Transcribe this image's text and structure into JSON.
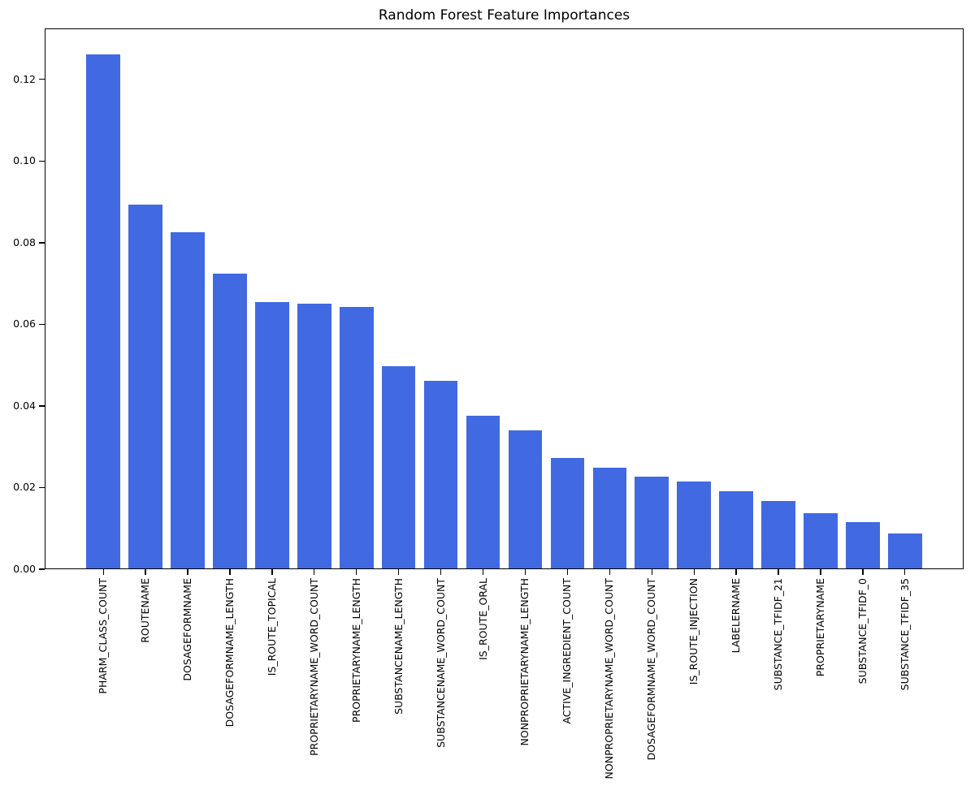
{
  "chart_data": {
    "type": "bar",
    "title": "Random Forest Feature Importances",
    "categories": [
      "PHARM_CLASS_COUNT",
      "ROUTENAME",
      "DOSAGEFORMNAME",
      "DOSAGEFORMNAME_LENGTH",
      "IS_ROUTE_TOPICAL",
      "PROPRIETARYNAME_WORD_COUNT",
      "PROPRIETARYNAME_LENGTH",
      "SUBSTANCENAME_LENGTH",
      "SUBSTANCENAME_WORD_COUNT",
      "IS_ROUTE_ORAL",
      "NONPROPRIETARYNAME_LENGTH",
      "ACTIVE_INGREDIENT_COUNT",
      "NONPROPRIETARYNAME_WORD_COUNT",
      "DOSAGEFORMNAME_WORD_COUNT",
      "IS_ROUTE_INJECTION",
      "LABELERNAME",
      "SUBSTANCE_TFIDF_21",
      "PROPRIETARYNAME",
      "SUBSTANCE_TFIDF_0",
      "SUBSTANCE_TFIDF_35"
    ],
    "values": [
      0.1262,
      0.0894,
      0.0826,
      0.0725,
      0.0655,
      0.065,
      0.0642,
      0.0497,
      0.0461,
      0.0376,
      0.034,
      0.0272,
      0.0248,
      0.0226,
      0.0214,
      0.019,
      0.0168,
      0.0137,
      0.0116,
      0.0088
    ],
    "xlabel": "",
    "ylabel": "",
    "ylim": [
      0,
      0.1325
    ],
    "yticks": [
      0.0,
      0.02,
      0.04,
      0.06,
      0.08,
      0.1,
      0.12
    ],
    "ytick_labels": [
      "0.00",
      "0.02",
      "0.04",
      "0.06",
      "0.08",
      "0.10",
      "0.12"
    ],
    "x_tick_label_rotation": 90,
    "grid": false,
    "legend": null,
    "bar_color": "#4169e1",
    "axis_color": "#000000",
    "text_color": "#000000",
    "background_color": "#ffffff"
  }
}
